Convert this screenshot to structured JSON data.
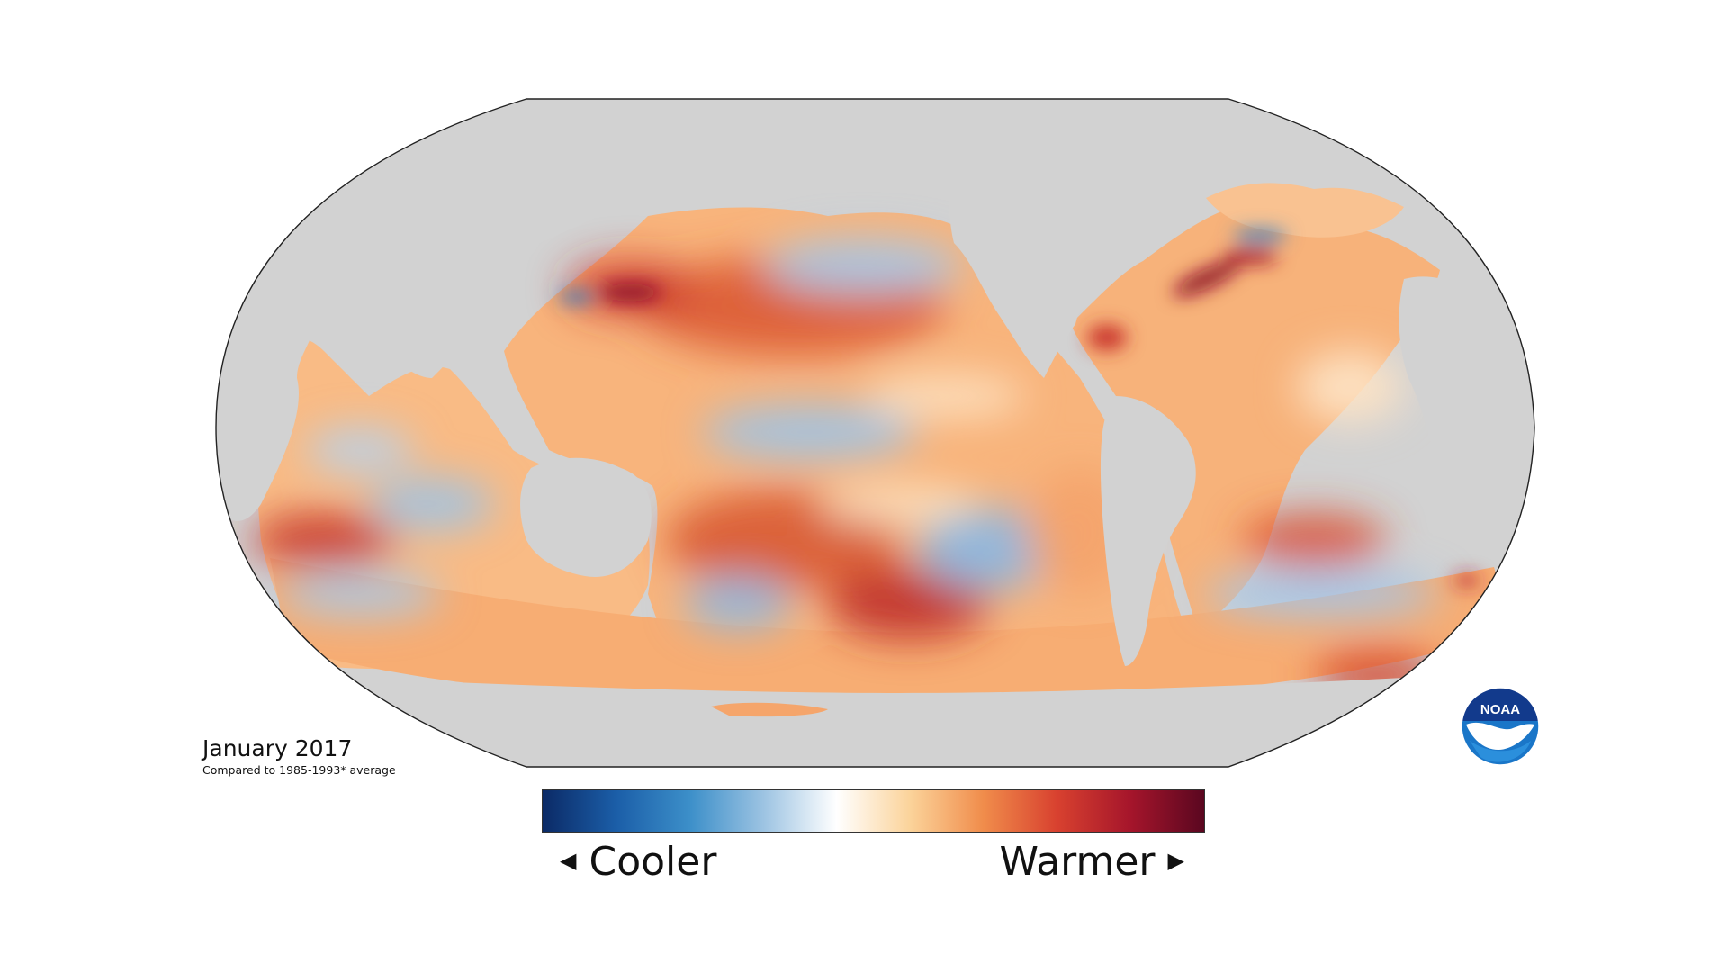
{
  "caption": {
    "title": "January 2017",
    "subtitle": "Compared to 1985-1993* average"
  },
  "legend": {
    "cool_label": "Cooler",
    "warm_label": "Warmer",
    "cool_arrow": "◀",
    "warm_arrow": "▶",
    "gradient": [
      "#0b2a66",
      "#1b5ea8",
      "#3c8fc9",
      "#9cc3e2",
      "#ffffff",
      "#fbd39a",
      "#f08c4b",
      "#d8412f",
      "#a5152b",
      "#5a0720"
    ]
  },
  "logo": {
    "text": "NOAA"
  },
  "colors": {
    "land": "#d2d2d2",
    "ocean_base": "#fbc58e",
    "outline": "#222222"
  }
}
